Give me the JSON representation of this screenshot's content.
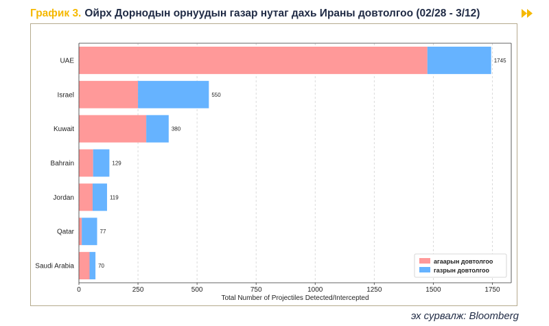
{
  "header": {
    "prefix": "График 3.",
    "title": "Ойрх Дорнодын орнуудын газар нутаг дахь Ираны довтолгоо (02/28 - 3/12)",
    "arrow_icon": "double-chevron-right-icon",
    "accent_color": "#f5b800",
    "title_color": "#1f2a44"
  },
  "source": {
    "label": "эх сурвалж:",
    "name": "Bloomberg"
  },
  "chart_data": {
    "type": "bar",
    "orientation": "horizontal",
    "stacked": true,
    "categories": [
      "UAE",
      "Israel",
      "Kuwait",
      "Bahrain",
      "Jordan",
      "Qatar",
      "Saudi Arabia"
    ],
    "series": [
      {
        "name": "агаарын довтолгоо",
        "color": "#ff9999",
        "values": [
          1475,
          250,
          285,
          60,
          58,
          12,
          45
        ]
      },
      {
        "name": "газрын довтолгоо",
        "color": "#66b3ff",
        "values": [
          270,
          300,
          95,
          69,
          61,
          65,
          25
        ]
      }
    ],
    "totals": [
      1745,
      550,
      380,
      129,
      119,
      77,
      70
    ],
    "xlabel": "Total Number of Projectiles Detected/Intercepted",
    "xlim": [
      0,
      1830
    ],
    "xticks": [
      0,
      250,
      500,
      750,
      1000,
      1250,
      1500,
      1750
    ],
    "grid": true,
    "legend_position": "bottom-right"
  }
}
